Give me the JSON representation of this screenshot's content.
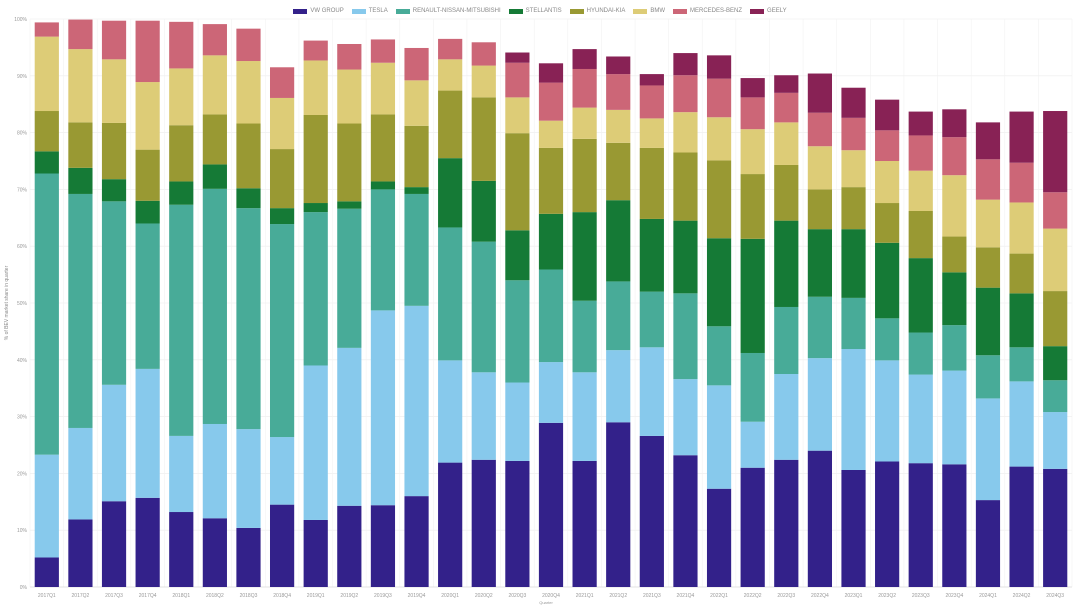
{
  "chart_data": {
    "type": "bar",
    "stacked": true,
    "title": "",
    "xlabel": "Quarter",
    "ylabel": "% of BEV market share in quarter",
    "ylim": [
      0,
      100
    ],
    "yticks": [
      "0%",
      "10%",
      "20%",
      "30%",
      "40%",
      "50%",
      "60%",
      "70%",
      "80%",
      "90%",
      "100%"
    ],
    "grid": true,
    "legend_position": "top-center",
    "categories": [
      "2017Q1",
      "2017Q2",
      "2017Q3",
      "2017Q4",
      "2018Q1",
      "2018Q2",
      "2018Q3",
      "2018Q4",
      "2019Q1",
      "2019Q2",
      "2019Q3",
      "2019Q4",
      "2020Q1",
      "2020Q2",
      "2020Q3",
      "2020Q4",
      "2021Q1",
      "2021Q2",
      "2021Q3",
      "2021Q4",
      "2022Q1",
      "2022Q2",
      "2022Q3",
      "2022Q4",
      "2023Q1",
      "2023Q2",
      "2023Q3",
      "2023Q4",
      "2024Q1",
      "2024Q2",
      "2024Q3"
    ],
    "series": [
      {
        "name": "VW GROUP",
        "color": "#33218a",
        "values": [
          5.2,
          11.9,
          15.1,
          15.7,
          13.2,
          12.1,
          10.4,
          14.5,
          11.8,
          14.3,
          14.4,
          16.0,
          21.9,
          22.4,
          22.2,
          28.9,
          22.2,
          29.0,
          26.6,
          23.2,
          17.3,
          21.0,
          22.4,
          24.0,
          20.6,
          22.1,
          21.8,
          21.6,
          15.3,
          21.2,
          20.8
        ]
      },
      {
        "name": "TESLA",
        "color": "#87c9ec",
        "values": [
          18.1,
          16.1,
          20.5,
          22.7,
          13.4,
          16.6,
          17.4,
          11.9,
          27.2,
          27.8,
          34.3,
          33.5,
          18.0,
          15.4,
          13.8,
          10.7,
          15.6,
          12.7,
          15.6,
          13.4,
          18.2,
          8.1,
          15.1,
          16.3,
          21.3,
          17.8,
          15.6,
          16.5,
          17.9,
          15.0,
          10.0
        ]
      },
      {
        "name": "RENAULT-NISSAN-MITSUBISHI",
        "color": "#48ab98",
        "values": [
          49.5,
          41.2,
          32.3,
          25.6,
          40.7,
          41.4,
          38.9,
          37.5,
          27.0,
          24.5,
          21.3,
          19.7,
          23.4,
          23.0,
          18.0,
          16.3,
          12.6,
          12.1,
          9.8,
          15.1,
          10.4,
          12.1,
          11.8,
          10.8,
          9.0,
          7.4,
          7.4,
          8.0,
          7.6,
          6.0,
          5.6
        ]
      },
      {
        "name": "STELLANTIS",
        "color": "#157a36",
        "values": [
          3.9,
          4.6,
          3.9,
          4.0,
          4.1,
          4.3,
          3.5,
          2.8,
          1.6,
          1.3,
          1.4,
          1.2,
          12.2,
          10.7,
          8.8,
          9.8,
          15.6,
          14.3,
          12.8,
          12.8,
          15.5,
          20.1,
          15.2,
          11.9,
          12.1,
          13.3,
          13.1,
          9.3,
          11.9,
          9.5,
          6.0
        ]
      },
      {
        "name": "HYUNDAI-KIA",
        "color": "#999933",
        "values": [
          7.1,
          8.0,
          9.9,
          9.0,
          9.9,
          8.8,
          11.4,
          10.4,
          15.5,
          13.7,
          11.8,
          10.8,
          11.9,
          14.7,
          17.1,
          11.6,
          12.9,
          10.1,
          12.5,
          12.0,
          13.7,
          11.4,
          9.8,
          7.0,
          7.4,
          7.0,
          8.3,
          6.3,
          7.1,
          7.0,
          9.7
        ]
      },
      {
        "name": "BMW",
        "color": "#ddcc77",
        "values": [
          13.1,
          12.9,
          11.2,
          11.9,
          10.0,
          10.4,
          11.0,
          9.0,
          9.6,
          9.5,
          9.1,
          8.0,
          5.5,
          5.6,
          6.3,
          4.8,
          5.5,
          5.8,
          5.2,
          7.1,
          7.6,
          7.9,
          7.5,
          7.6,
          6.5,
          7.4,
          7.1,
          10.8,
          8.4,
          9.0,
          11.0
        ]
      },
      {
        "name": "MERCEDES-BENZ",
        "color": "#cc6677",
        "values": [
          2.5,
          5.2,
          6.8,
          10.8,
          8.2,
          5.5,
          5.7,
          5.4,
          3.5,
          4.5,
          4.1,
          5.7,
          3.6,
          4.1,
          6.1,
          6.7,
          6.8,
          6.3,
          5.8,
          6.5,
          6.8,
          5.6,
          5.2,
          5.9,
          5.7,
          5.4,
          6.2,
          6.7,
          7.1,
          7.0,
          6.4
        ]
      },
      {
        "name": "GEELY",
        "color": "#882255",
        "values": [
          0,
          0,
          0,
          0,
          0,
          0,
          0,
          0,
          0,
          0,
          0,
          0,
          0,
          0,
          1.8,
          3.4,
          3.5,
          3.1,
          2.0,
          3.9,
          4.1,
          3.4,
          3.1,
          6.9,
          5.3,
          5.4,
          4.2,
          4.9,
          6.5,
          9.0,
          14.3
        ]
      }
    ]
  }
}
